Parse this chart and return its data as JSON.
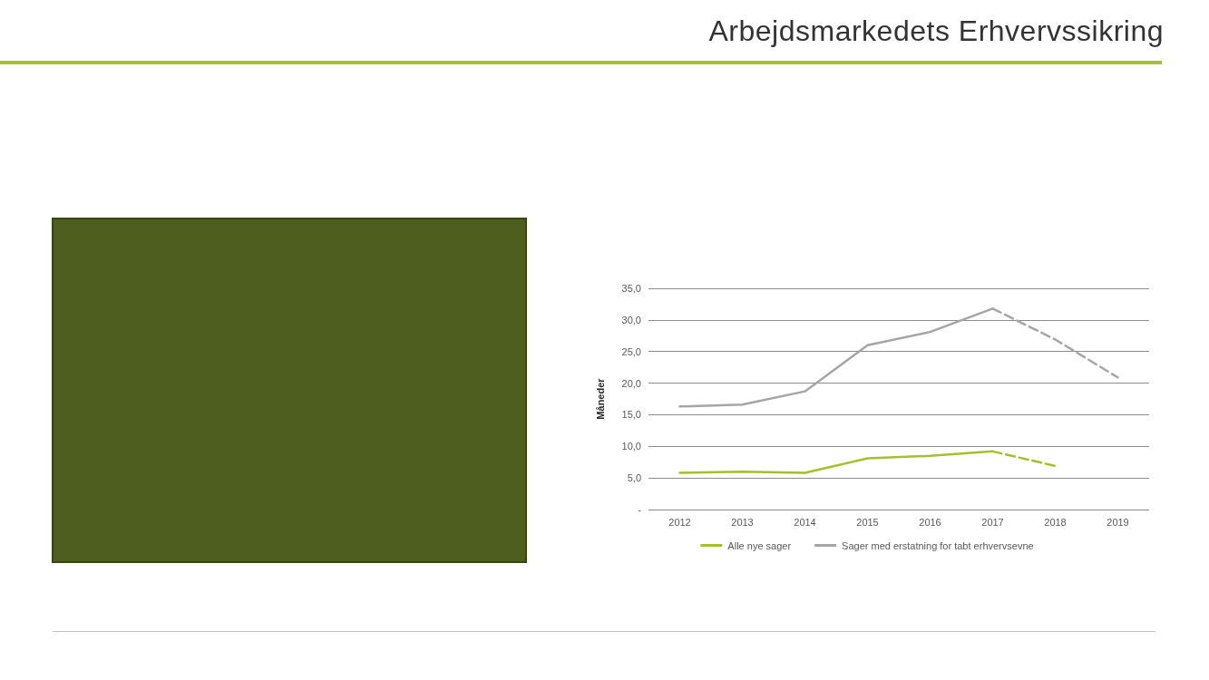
{
  "chart_data": {
    "type": "line",
    "title": "Arbejdsmarkedets Erhvervssikring",
    "ylabel": "Måneder",
    "categories": [
      "2012",
      "2013",
      "2014",
      "2015",
      "2016",
      "2017",
      "2018",
      "2019"
    ],
    "series": [
      {
        "name": "Alle nye sager",
        "color": "#a6bf2f",
        "line_style": "solid",
        "values": [
          5.8,
          6.0,
          5.8,
          8.1,
          8.5,
          9.2,
          null,
          null
        ]
      },
      {
        "name": "Sager med erstatning for tabt erhvervsevne",
        "color": "#a5a5a5",
        "line_style": "solid",
        "values": [
          16.3,
          16.6,
          18.7,
          26.0,
          28.1,
          31.8,
          null,
          null
        ]
      },
      {
        "color": "#a6bf2f",
        "line_style": "dashed",
        "values": [
          null,
          null,
          null,
          null,
          null,
          9.2,
          6.9,
          null
        ]
      },
      {
        "color": "#a5a5a5",
        "line_style": "dashed",
        "values": [
          null,
          null,
          null,
          null,
          null,
          31.8,
          26.9,
          20.9
        ]
      }
    ],
    "ylim": [
      0,
      35
    ],
    "yticks": [
      {
        "value": 0,
        "label": "-"
      },
      {
        "value": 5,
        "label": "5,0"
      },
      {
        "value": 10,
        "label": "10,0"
      },
      {
        "value": 15,
        "label": "15,0"
      },
      {
        "value": 20,
        "label": "20,0"
      },
      {
        "value": 25,
        "label": "25,0"
      },
      {
        "value": 30,
        "label": "30,0"
      },
      {
        "value": 35,
        "label": "35,0"
      }
    ],
    "grid": "y",
    "legend": "bottom",
    "marker": "none"
  }
}
